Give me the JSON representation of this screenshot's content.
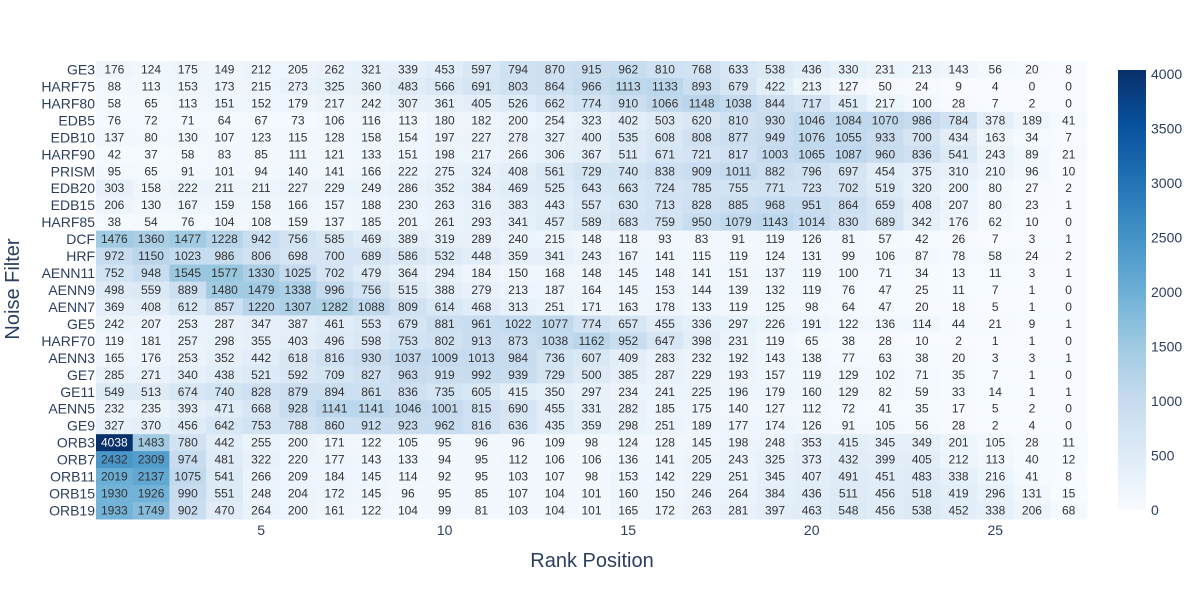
{
  "chart_data": {
    "type": "heatmap",
    "xlabel": "Rank Position",
    "ylabel": "Noise Filter",
    "x": [
      1,
      2,
      3,
      4,
      5,
      6,
      7,
      8,
      9,
      10,
      11,
      12,
      13,
      14,
      15,
      16,
      17,
      18,
      19,
      20,
      21,
      22,
      23,
      24,
      25,
      26,
      27
    ],
    "x_tick_labels": [
      "5",
      "10",
      "15",
      "20",
      "25"
    ],
    "x_tick_values": [
      5,
      10,
      15,
      20,
      25
    ],
    "colorscale": [
      "#f7fbff",
      "#deebf7",
      "#c6dbef",
      "#9ecae1",
      "#6baed6",
      "#4292c6",
      "#2171b5",
      "#08519c",
      "#08306b"
    ],
    "zmin": 0,
    "zmax": 4038,
    "colorbar_ticks": [
      0,
      500,
      1000,
      1500,
      2000,
      2500,
      3000,
      3500,
      4000
    ],
    "colorbar_tick_labels": [
      "0",
      "500",
      "1000",
      "1500",
      "2000",
      "2500",
      "3000",
      "3500",
      "4000"
    ],
    "rows": [
      {
        "label": "GE3",
        "values": [
          176,
          124,
          175,
          149,
          212,
          205,
          262,
          321,
          339,
          453,
          597,
          794,
          870,
          915,
          962,
          810,
          768,
          633,
          538,
          436,
          330,
          231,
          213,
          143,
          56,
          20,
          8
        ]
      },
      {
        "label": "HARF75",
        "values": [
          88,
          113,
          153,
          173,
          215,
          273,
          325,
          360,
          483,
          566,
          691,
          803,
          864,
          966,
          1113,
          1133,
          893,
          679,
          422,
          213,
          127,
          50,
          24,
          9,
          4,
          0,
          0
        ]
      },
      {
        "label": "HARF80",
        "values": [
          58,
          65,
          113,
          151,
          152,
          179,
          217,
          242,
          307,
          361,
          405,
          526,
          662,
          774,
          910,
          1066,
          1148,
          1038,
          844,
          717,
          451,
          217,
          100,
          28,
          7,
          2,
          0
        ]
      },
      {
        "label": "EDB5",
        "values": [
          76,
          72,
          71,
          64,
          67,
          73,
          106,
          116,
          113,
          180,
          182,
          200,
          254,
          323,
          402,
          503,
          620,
          810,
          930,
          1046,
          1084,
          1070,
          986,
          784,
          378,
          189,
          41
        ]
      },
      {
        "label": "EDB10",
        "values": [
          137,
          80,
          130,
          107,
          123,
          115,
          128,
          158,
          154,
          197,
          227,
          278,
          327,
          400,
          535,
          608,
          808,
          877,
          949,
          1076,
          1055,
          933,
          700,
          434,
          163,
          34,
          7
        ]
      },
      {
        "label": "HARF90",
        "values": [
          42,
          37,
          58,
          83,
          85,
          111,
          121,
          133,
          151,
          198,
          217,
          266,
          306,
          367,
          511,
          671,
          721,
          817,
          1003,
          1065,
          1087,
          960,
          836,
          541,
          243,
          89,
          21
        ]
      },
      {
        "label": "PRISM",
        "values": [
          95,
          65,
          91,
          101,
          94,
          140,
          141,
          166,
          222,
          275,
          324,
          408,
          561,
          729,
          740,
          838,
          909,
          1011,
          882,
          796,
          697,
          454,
          375,
          310,
          210,
          96,
          10
        ]
      },
      {
        "label": "EDB20",
        "values": [
          303,
          158,
          222,
          211,
          211,
          227,
          229,
          249,
          286,
          352,
          384,
          469,
          525,
          643,
          663,
          724,
          785,
          755,
          771,
          723,
          702,
          519,
          320,
          200,
          80,
          27,
          2
        ]
      },
      {
        "label": "EDB15",
        "values": [
          206,
          130,
          167,
          159,
          158,
          166,
          157,
          188,
          230,
          263,
          316,
          383,
          443,
          557,
          630,
          713,
          828,
          885,
          968,
          951,
          864,
          659,
          408,
          207,
          80,
          23,
          1
        ]
      },
      {
        "label": "HARF85",
        "values": [
          38,
          54,
          76,
          104,
          108,
          159,
          137,
          185,
          201,
          261,
          293,
          341,
          457,
          589,
          683,
          759,
          950,
          1079,
          1143,
          1014,
          830,
          689,
          342,
          176,
          62,
          10,
          0
        ]
      },
      {
        "label": "DCF",
        "values": [
          1476,
          1360,
          1477,
          1228,
          942,
          756,
          585,
          469,
          389,
          319,
          289,
          240,
          215,
          148,
          118,
          93,
          83,
          91,
          119,
          126,
          81,
          57,
          42,
          26,
          7,
          3,
          1
        ]
      },
      {
        "label": "HRF",
        "values": [
          972,
          1150,
          1023,
          986,
          806,
          698,
          700,
          689,
          586,
          532,
          448,
          359,
          341,
          243,
          167,
          141,
          115,
          119,
          124,
          131,
          99,
          106,
          87,
          78,
          58,
          24,
          2
        ]
      },
      {
        "label": "AENN11",
        "values": [
          752,
          948,
          1545,
          1577,
          1330,
          1025,
          702,
          479,
          364,
          294,
          184,
          150,
          168,
          148,
          145,
          148,
          141,
          151,
          137,
          119,
          100,
          71,
          34,
          13,
          11,
          3,
          1
        ]
      },
      {
        "label": "AENN9",
        "values": [
          498,
          559,
          889,
          1480,
          1479,
          1338,
          996,
          756,
          515,
          388,
          279,
          213,
          187,
          164,
          145,
          153,
          144,
          139,
          132,
          119,
          76,
          47,
          25,
          11,
          7,
          1,
          0
        ]
      },
      {
        "label": "AENN7",
        "values": [
          369,
          408,
          612,
          857,
          1220,
          1307,
          1282,
          1088,
          809,
          614,
          468,
          313,
          251,
          171,
          163,
          178,
          133,
          119,
          125,
          98,
          64,
          47,
          20,
          18,
          5,
          1,
          0
        ]
      },
      {
        "label": "GE5",
        "values": [
          242,
          207,
          253,
          287,
          347,
          387,
          461,
          553,
          679,
          881,
          961,
          1022,
          1077,
          774,
          657,
          455,
          336,
          297,
          226,
          191,
          122,
          136,
          114,
          44,
          21,
          9,
          1
        ]
      },
      {
        "label": "HARF70",
        "values": [
          119,
          181,
          257,
          298,
          355,
          403,
          496,
          598,
          753,
          802,
          913,
          873,
          1038,
          1162,
          952,
          647,
          398,
          231,
          119,
          65,
          38,
          28,
          10,
          2,
          1,
          1,
          0
        ]
      },
      {
        "label": "AENN3",
        "values": [
          165,
          176,
          253,
          352,
          442,
          618,
          816,
          930,
          1037,
          1009,
          1013,
          984,
          736,
          607,
          409,
          283,
          232,
          192,
          143,
          138,
          77,
          63,
          38,
          20,
          3,
          3,
          1
        ]
      },
      {
        "label": "GE7",
        "values": [
          285,
          271,
          340,
          438,
          521,
          592,
          709,
          827,
          963,
          919,
          992,
          939,
          729,
          500,
          385,
          287,
          229,
          193,
          157,
          119,
          129,
          102,
          71,
          35,
          7,
          1,
          0
        ]
      },
      {
        "label": "GE11",
        "values": [
          549,
          513,
          674,
          740,
          828,
          879,
          894,
          861,
          836,
          735,
          605,
          415,
          350,
          297,
          234,
          241,
          225,
          196,
          179,
          160,
          129,
          82,
          59,
          33,
          14,
          1,
          1
        ]
      },
      {
        "label": "AENN5",
        "values": [
          232,
          235,
          393,
          471,
          668,
          928,
          1141,
          1141,
          1046,
          1001,
          815,
          690,
          455,
          331,
          282,
          185,
          175,
          140,
          127,
          112,
          72,
          41,
          35,
          17,
          5,
          2,
          0
        ]
      },
      {
        "label": "GE9",
        "values": [
          327,
          370,
          456,
          642,
          753,
          788,
          860,
          912,
          923,
          962,
          816,
          636,
          435,
          359,
          298,
          251,
          189,
          177,
          174,
          126,
          91,
          105,
          56,
          28,
          2,
          4,
          0
        ]
      },
      {
        "label": "ORB3",
        "values": [
          4038,
          1483,
          780,
          442,
          255,
          200,
          171,
          122,
          105,
          95,
          96,
          96,
          109,
          98,
          124,
          128,
          145,
          198,
          248,
          353,
          415,
          345,
          349,
          201,
          105,
          28,
          11
        ]
      },
      {
        "label": "ORB7",
        "values": [
          2432,
          2309,
          974,
          481,
          322,
          220,
          177,
          143,
          133,
          94,
          95,
          112,
          106,
          106,
          136,
          141,
          205,
          243,
          325,
          373,
          432,
          399,
          405,
          212,
          113,
          40,
          12
        ]
      },
      {
        "label": "ORB11",
        "values": [
          2019,
          2137,
          1075,
          541,
          266,
          209,
          184,
          145,
          114,
          92,
          95,
          103,
          107,
          98,
          153,
          142,
          229,
          251,
          345,
          407,
          491,
          451,
          483,
          338,
          216,
          41,
          8
        ]
      },
      {
        "label": "ORB15",
        "values": [
          1930,
          1926,
          990,
          551,
          248,
          204,
          172,
          145,
          96,
          95,
          85,
          107,
          104,
          101,
          160,
          150,
          246,
          264,
          384,
          436,
          511,
          456,
          518,
          419,
          296,
          131,
          15
        ]
      },
      {
        "label": "ORB19",
        "values": [
          1933,
          1749,
          902,
          470,
          264,
          200,
          161,
          122,
          104,
          99,
          81,
          103,
          104,
          101,
          165,
          172,
          263,
          281,
          397,
          463,
          548,
          456,
          538,
          452,
          338,
          206,
          68
        ]
      }
    ]
  }
}
